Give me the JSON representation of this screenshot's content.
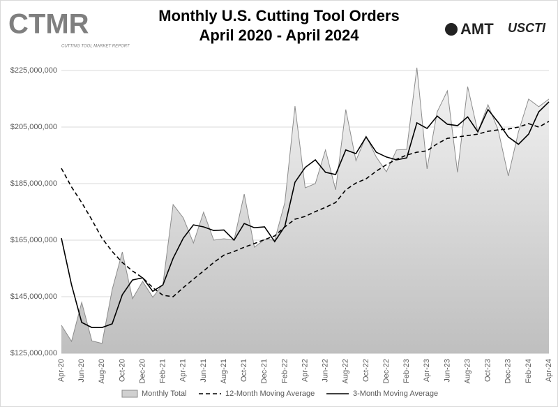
{
  "chart_data": {
    "type": "line",
    "title": "Monthly U.S. Cutting Tool Orders",
    "subtitle": "April 2020 - April 2024",
    "logos": {
      "left": "CTMR",
      "left_caption": "CUTTING TOOL MARKET REPORT",
      "right": "AMT",
      "right_2": "USCTI"
    },
    "categories": [
      "Apr-20",
      null,
      "Jun-20",
      null,
      "Aug-20",
      null,
      "Oct-20",
      null,
      "Dec-20",
      null,
      "Feb-21",
      null,
      "Apr-21",
      null,
      "Jun-21",
      null,
      "Aug-21",
      null,
      "Oct-21",
      null,
      "Dec-21",
      null,
      "Feb-22",
      null,
      "Apr-22",
      null,
      "Jun-22",
      null,
      "Aug-22",
      null,
      "Oct-22",
      null,
      "Dec-22",
      null,
      "Feb-23",
      null,
      "Apr-23",
      null,
      "Jun-23",
      null,
      "Aug-23",
      null,
      "Oct-23",
      null,
      "Dec-23",
      null,
      "Feb-24",
      null,
      "Apr-24"
    ],
    "series": [
      {
        "name": "Monthly Total",
        "kind": "area",
        "color": "#d0d0d0",
        "line_color": "#8c8c8c",
        "values": [
          134900000,
          129200000,
          143000000,
          129400000,
          128500000,
          147500000,
          160800000,
          144300000,
          150400000,
          144800000,
          149400000,
          177600000,
          172900000,
          164000000,
          174900000,
          165000000,
          165500000,
          165000000,
          181300000,
          162500000,
          165200000,
          165000000,
          178300000,
          212400000,
          183500000,
          185000000,
          196900000,
          182800000,
          211200000,
          193100000,
          201800000,
          194400000,
          189200000,
          196900000,
          197100000,
          226000000,
          190200000,
          210400000,
          217800000,
          189000000,
          219300000,
          203300000,
          212900000,
          204000000,
          187700000,
          203300000,
          214900000,
          212200000,
          214900000
        ]
      },
      {
        "name": "12-Month Moving Average",
        "kind": "line",
        "dashed": true,
        "color": "#000000",
        "values": [
          190400000,
          183800000,
          178300000,
          172200000,
          165700000,
          161000000,
          157100000,
          154100000,
          151700000,
          148200000,
          145500000,
          145000000,
          148200000,
          151200000,
          154100000,
          157100000,
          159700000,
          161000000,
          162500000,
          163800000,
          165200000,
          166500000,
          169700000,
          172400000,
          173400000,
          175100000,
          176600000,
          178300000,
          182800000,
          185200000,
          186700000,
          189400000,
          191700000,
          193600000,
          195100000,
          196100000,
          196600000,
          199100000,
          201000000,
          201500000,
          202000000,
          202500000,
          203500000,
          204000000,
          204300000,
          205000000,
          206200000,
          205000000,
          207000000
        ]
      },
      {
        "name": "3-Month Moving Average",
        "kind": "line",
        "dashed": false,
        "color": "#000000",
        "values": [
          165700000,
          149200000,
          135900000,
          134100000,
          134100000,
          135400000,
          145700000,
          150900000,
          151700000,
          146900000,
          149200000,
          158600000,
          165700000,
          170400000,
          169700000,
          168400000,
          168600000,
          165000000,
          170900000,
          169400000,
          169700000,
          164500000,
          169900000,
          185500000,
          190700000,
          193400000,
          189000000,
          188200000,
          196900000,
          195600000,
          201500000,
          196100000,
          194400000,
          193400000,
          194100000,
          206500000,
          204500000,
          208900000,
          206000000,
          205500000,
          208600000,
          203300000,
          211200000,
          206700000,
          201500000,
          198900000,
          202500000,
          210400000,
          213900000
        ]
      }
    ],
    "ylim": [
      125000000,
      225000000
    ],
    "yticks": [
      {
        "value": 125000000,
        "label": "$125,000,000"
      },
      {
        "value": 145000000,
        "label": "$145,000,000"
      },
      {
        "value": 165000000,
        "label": "$165,000,000"
      },
      {
        "value": 185000000,
        "label": "$185,000,000"
      },
      {
        "value": 205000000,
        "label": "$205,000,000"
      },
      {
        "value": 225000000,
        "label": "$225,000,000"
      }
    ],
    "grid": true,
    "legend": "bottom"
  }
}
